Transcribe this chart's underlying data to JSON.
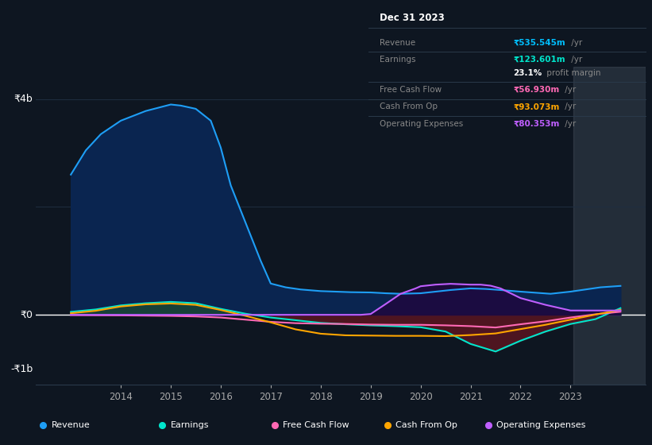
{
  "background_color": "#0e1621",
  "plot_bg_color": "#0e1621",
  "grid_color": "#1e2d40",
  "zero_line_color": "#ffffff",
  "title_box_bg": "#0a0e14",
  "title_box_border": "#2a3a4a",
  "y_label_4b": "₹4b",
  "y_label_0": "₹0",
  "y_label_neg1b": "-₹1b",
  "ylim": [
    -1300,
    4600
  ],
  "xlim": [
    2012.3,
    2024.5
  ],
  "x_ticks": [
    2014,
    2015,
    2016,
    2017,
    2018,
    2019,
    2020,
    2021,
    2022,
    2023
  ],
  "series": {
    "revenue": {
      "color": "#1e9ef5",
      "fill_color": "#0a2550",
      "label": "Revenue",
      "x": [
        2013.0,
        2013.3,
        2013.6,
        2014.0,
        2014.5,
        2015.0,
        2015.2,
        2015.5,
        2015.8,
        2016.0,
        2016.2,
        2016.5,
        2016.8,
        2017.0,
        2017.3,
        2017.6,
        2018.0,
        2018.3,
        2018.6,
        2019.0,
        2019.3,
        2019.6,
        2020.0,
        2020.3,
        2020.6,
        2021.0,
        2021.3,
        2021.6,
        2022.0,
        2022.3,
        2022.6,
        2023.0,
        2023.3,
        2023.6,
        2024.0
      ],
      "y": [
        2600,
        3050,
        3350,
        3600,
        3780,
        3900,
        3880,
        3820,
        3600,
        3100,
        2400,
        1700,
        1000,
        580,
        510,
        470,
        440,
        430,
        420,
        415,
        400,
        390,
        400,
        430,
        460,
        490,
        480,
        460,
        430,
        410,
        390,
        430,
        470,
        510,
        536
      ]
    },
    "earnings": {
      "color": "#00e5cc",
      "label": "Earnings",
      "x": [
        2013.0,
        2013.5,
        2014.0,
        2014.5,
        2015.0,
        2015.5,
        2016.0,
        2016.5,
        2017.0,
        2017.5,
        2018.0,
        2018.5,
        2019.0,
        2019.5,
        2020.0,
        2020.5,
        2021.0,
        2021.5,
        2022.0,
        2022.5,
        2023.0,
        2023.5,
        2024.0
      ],
      "y": [
        55,
        100,
        175,
        215,
        240,
        215,
        110,
        20,
        -50,
        -100,
        -150,
        -175,
        -195,
        -210,
        -230,
        -310,
        -540,
        -680,
        -480,
        -310,
        -170,
        -80,
        124
      ]
    },
    "free_cash_flow": {
      "color": "#ff69b4",
      "label": "Free Cash Flow",
      "x": [
        2013.0,
        2013.5,
        2014.0,
        2014.5,
        2015.0,
        2015.5,
        2016.0,
        2016.5,
        2017.0,
        2017.5,
        2018.0,
        2018.5,
        2019.0,
        2019.5,
        2020.0,
        2020.5,
        2021.0,
        2021.5,
        2022.0,
        2022.5,
        2023.0,
        2023.5,
        2024.0
      ],
      "y": [
        -5,
        -8,
        -10,
        -15,
        -20,
        -30,
        -50,
        -90,
        -130,
        -155,
        -165,
        -170,
        -180,
        -185,
        -185,
        -195,
        -210,
        -235,
        -175,
        -120,
        -50,
        10,
        57
      ]
    },
    "cash_from_op": {
      "color": "#ffa500",
      "label": "Cash From Op",
      "x": [
        2013.0,
        2013.5,
        2014.0,
        2014.5,
        2015.0,
        2015.5,
        2016.0,
        2016.5,
        2017.0,
        2017.5,
        2018.0,
        2018.5,
        2019.0,
        2019.5,
        2020.0,
        2020.5,
        2021.0,
        2021.5,
        2022.0,
        2022.5,
        2023.0,
        2023.5,
        2024.0
      ],
      "y": [
        30,
        75,
        155,
        195,
        210,
        185,
        90,
        -20,
        -140,
        -270,
        -350,
        -380,
        -385,
        -390,
        -390,
        -395,
        -375,
        -345,
        -265,
        -185,
        -90,
        5,
        93
      ]
    },
    "operating_expenses": {
      "color": "#bf5fff",
      "fill_color": "#1e0a40",
      "label": "Operating Expenses",
      "x": [
        2013.0,
        2014.0,
        2015.0,
        2016.0,
        2017.0,
        2018.0,
        2018.8,
        2019.0,
        2019.3,
        2019.6,
        2019.9,
        2020.0,
        2020.3,
        2020.6,
        2021.0,
        2021.2,
        2021.4,
        2021.6,
        2022.0,
        2022.5,
        2023.0,
        2023.5,
        2024.0
      ],
      "y": [
        0,
        0,
        0,
        0,
        0,
        0,
        0,
        15,
        200,
        390,
        490,
        530,
        560,
        575,
        560,
        560,
        540,
        490,
        310,
        185,
        80,
        80,
        80
      ]
    }
  },
  "info_box": {
    "date": "Dec 31 2023",
    "rows": [
      {
        "label": "Revenue",
        "value": "₹535.545m",
        "unit": " /yr",
        "value_color": "#00bfff"
      },
      {
        "label": "Earnings",
        "value": "₹123.601m",
        "unit": " /yr",
        "value_color": "#00e5cc"
      },
      {
        "label": "",
        "value": "23.1%",
        "unit": " profit margin",
        "value_color": "#ffffff"
      },
      {
        "label": "Free Cash Flow",
        "value": "₹56.930m",
        "unit": " /yr",
        "value_color": "#ff69b4"
      },
      {
        "label": "Cash From Op",
        "value": "₹93.073m",
        "unit": " /yr",
        "value_color": "#ffa500"
      },
      {
        "label": "Operating Expenses",
        "value": "₹80.353m",
        "unit": " /yr",
        "value_color": "#bf5fff"
      }
    ]
  },
  "legend": [
    {
      "label": "Revenue",
      "color": "#1e9ef5"
    },
    {
      "label": "Earnings",
      "color": "#00e5cc"
    },
    {
      "label": "Free Cash Flow",
      "color": "#ff69b4"
    },
    {
      "label": "Cash From Op",
      "color": "#ffa500"
    },
    {
      "label": "Operating Expenses",
      "color": "#bf5fff"
    }
  ]
}
